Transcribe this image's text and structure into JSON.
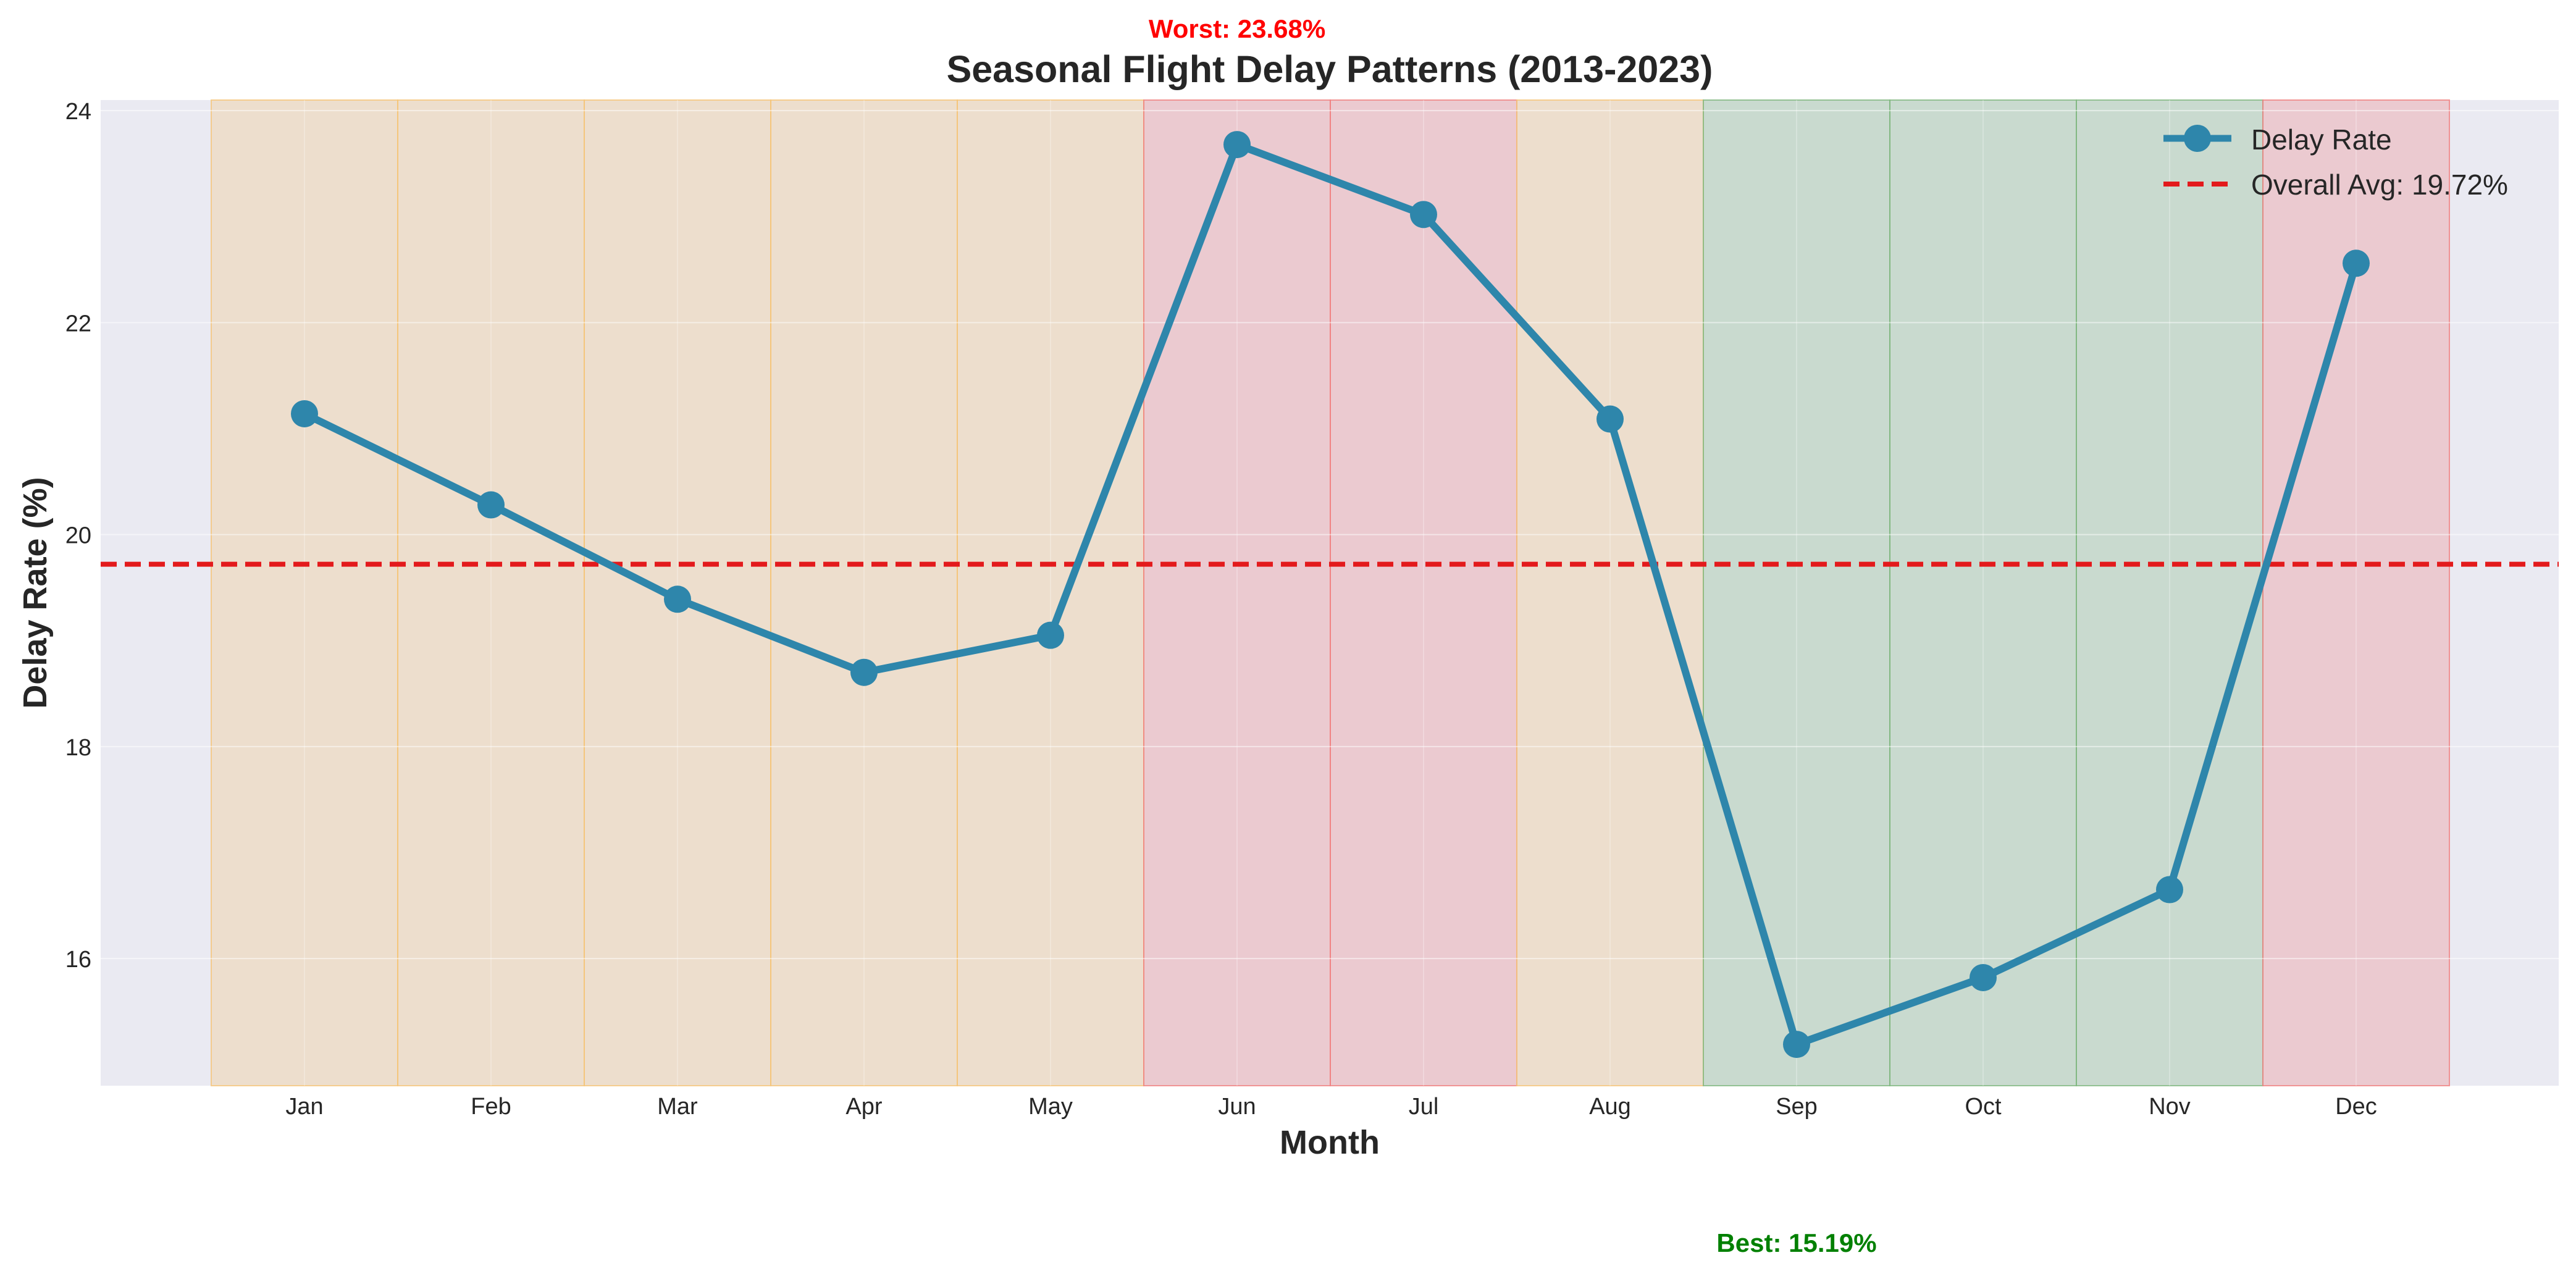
{
  "chart_data": {
    "type": "line",
    "title": "Seasonal Flight Delay Patterns (2013-2023)",
    "xlabel": "Month",
    "ylabel": "Delay Rate (%)",
    "categories": [
      "Jan",
      "Feb",
      "Mar",
      "Apr",
      "May",
      "Jun",
      "Jul",
      "Aug",
      "Sep",
      "Oct",
      "Nov",
      "Dec"
    ],
    "series": [
      {
        "name": "Delay Rate",
        "color": "#2e86ab",
        "values": [
          21.14,
          20.28,
          19.39,
          18.7,
          19.05,
          23.68,
          23.02,
          21.09,
          15.19,
          15.82,
          16.65,
          22.56
        ]
      }
    ],
    "average": {
      "label": "Overall Avg: 19.72%",
      "value": 19.72,
      "color": "#e31a1c"
    },
    "bands": [
      "moderate",
      "moderate",
      "moderate",
      "moderate",
      "moderate",
      "high",
      "high",
      "moderate",
      "low",
      "low",
      "low",
      "high"
    ],
    "band_colors": {
      "moderate": "#f5c478",
      "high": "#f08080",
      "low": "#7fb77e"
    },
    "ylim": [
      14.8,
      24.1
    ],
    "yticks": [
      16,
      18,
      20,
      22,
      24
    ],
    "grid": true,
    "legend_position": "top-right",
    "annotations": {
      "worst": {
        "text": "Worst: 23.68%",
        "month": "Jun",
        "color": "#ff0000"
      },
      "best": {
        "text": "Best: 15.19%",
        "month": "Sep",
        "color": "#008000"
      }
    }
  }
}
